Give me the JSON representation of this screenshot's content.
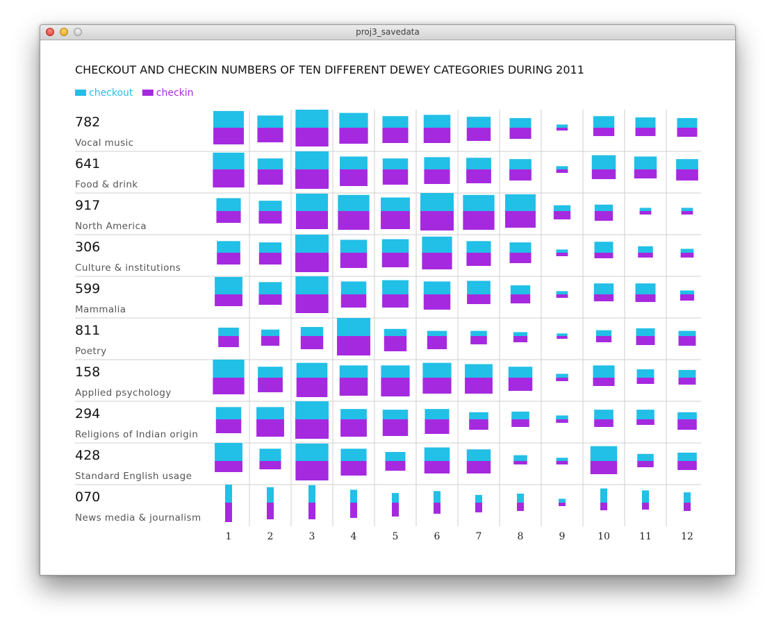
{
  "window": {
    "title": "proj3_savedata"
  },
  "colors": {
    "checkout": "#22bfe6",
    "checkin": "#a52adf",
    "grid": "#cfcfcf"
  },
  "chart_data": {
    "type": "bar",
    "title": "CHECKOUT AND CHECKIN NUMBERS OF TEN DIFFERENT DEWEY CATEGORIES DURING 2011",
    "legend": {
      "placement": "top-left",
      "entries": [
        "checkout",
        "checkin"
      ]
    },
    "x": [
      "1",
      "2",
      "3",
      "4",
      "5",
      "6",
      "7",
      "8",
      "9",
      "10",
      "11",
      "12"
    ],
    "rows": [
      {
        "code": "782",
        "name": "Vocal music",
        "checkout": [
          26,
          19,
          28,
          23,
          18,
          20,
          17,
          15,
          5,
          18,
          16,
          15
        ],
        "checkin": [
          24,
          21,
          27,
          23,
          22,
          22,
          19,
          16,
          4,
          12,
          12,
          13
        ]
      },
      {
        "code": "641",
        "name": "Food & drink",
        "checkout": [
          26,
          17,
          28,
          20,
          17,
          19,
          18,
          16,
          5,
          22,
          20,
          16
        ],
        "checkin": [
          26,
          22,
          28,
          24,
          22,
          21,
          20,
          16,
          5,
          14,
          13,
          16
        ]
      },
      {
        "code": "917",
        "name": "North America",
        "checkout": [
          20,
          16,
          27,
          25,
          21,
          28,
          25,
          26,
          9,
          10,
          5,
          5
        ],
        "checkin": [
          17,
          18,
          26,
          27,
          26,
          28,
          27,
          24,
          12,
          14,
          5,
          5
        ]
      },
      {
        "code": "306",
        "name": "Culture & institutions",
        "checkout": [
          18,
          16,
          28,
          20,
          21,
          25,
          18,
          16,
          5,
          17,
          10,
          6
        ],
        "checkin": [
          17,
          17,
          28,
          22,
          21,
          24,
          19,
          15,
          5,
          8,
          7,
          7
        ]
      },
      {
        "code": "599",
        "name": "Mammalia",
        "checkout": [
          27,
          19,
          28,
          20,
          22,
          20,
          21,
          14,
          5,
          17,
          17,
          6
        ],
        "checkin": [
          17,
          15,
          27,
          19,
          19,
          22,
          14,
          13,
          5,
          10,
          11,
          9
        ]
      },
      {
        "code": "811",
        "name": "Poetry",
        "checkout": [
          13,
          10,
          14,
          28,
          11,
          8,
          8,
          6,
          4,
          9,
          12,
          8
        ],
        "checkin": [
          16,
          14,
          19,
          28,
          22,
          19,
          12,
          9,
          4,
          9,
          13,
          14
        ]
      },
      {
        "code": "158",
        "name": "Applied psychology",
        "checkout": [
          28,
          17,
          23,
          19,
          19,
          23,
          21,
          17,
          6,
          19,
          13,
          12
        ],
        "checkin": [
          24,
          21,
          28,
          26,
          27,
          23,
          23,
          19,
          5,
          12,
          9,
          10
        ]
      },
      {
        "code": "294",
        "name": "Religions of Indian origin",
        "checkout": [
          19,
          19,
          28,
          16,
          15,
          16,
          11,
          12,
          6,
          15,
          15,
          11
        ],
        "checkin": [
          20,
          25,
          28,
          25,
          24,
          21,
          15,
          11,
          5,
          11,
          8,
          15
        ]
      },
      {
        "code": "428",
        "name": "Standard English usage",
        "checkout": [
          28,
          19,
          27,
          19,
          14,
          21,
          18,
          9,
          5,
          23,
          11,
          13
        ],
        "checkin": [
          16,
          12,
          28,
          21,
          14,
          18,
          18,
          5,
          5,
          19,
          9,
          13
        ]
      },
      {
        "code": "070",
        "name": "News media & journalism",
        "checkout": [
          28,
          24,
          27,
          20,
          15,
          18,
          12,
          14,
          6,
          22,
          19,
          16
        ],
        "checkin": [
          28,
          24,
          24,
          22,
          20,
          16,
          14,
          12,
          5,
          11,
          10,
          12
        ]
      }
    ]
  }
}
